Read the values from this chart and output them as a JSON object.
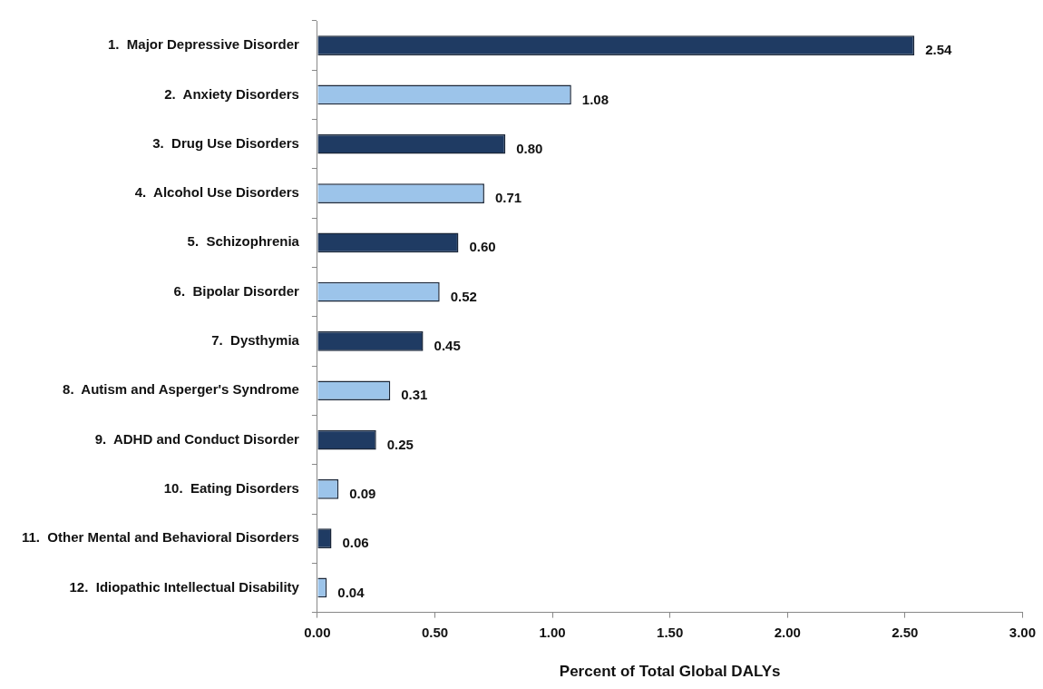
{
  "chart_data": {
    "type": "bar",
    "orientation": "horizontal",
    "xlabel": "Percent of Total Global DALYs",
    "categories": [
      "1.  Major Depressive Disorder",
      "2.  Anxiety Disorders",
      "3.  Drug Use Disorders",
      "4.  Alcohol Use Disorders",
      "5.  Schizophrenia",
      "6.  Bipolar Disorder",
      "7.  Dysthymia",
      "8.  Autism and Asperger's Syndrome",
      "9.  ADHD and Conduct Disorder",
      "10.  Eating Disorders",
      "11.  Other Mental and Behavioral Disorders",
      "12.  Idiopathic Intellectual Disability"
    ],
    "values": [
      2.54,
      1.08,
      0.8,
      0.71,
      0.6,
      0.52,
      0.45,
      0.31,
      0.25,
      0.09,
      0.06,
      0.04
    ],
    "value_labels": [
      "2.54",
      "1.08",
      "0.80",
      "0.71",
      "0.60",
      "0.52",
      "0.45",
      "0.31",
      "0.25",
      "0.09",
      "0.06",
      "0.04"
    ],
    "colors": [
      "#1f3b63",
      "#9cc4ea",
      "#1f3b63",
      "#9cc4ea",
      "#1f3b63",
      "#9cc4ea",
      "#1f3b63",
      "#9cc4ea",
      "#1f3b63",
      "#9cc4ea",
      "#1f3b63",
      "#9cc4ea"
    ],
    "xlim": [
      0,
      3
    ],
    "xticks": [
      {
        "value": 0,
        "label": "0.00"
      },
      {
        "value": 0.5,
        "label": "0.50"
      },
      {
        "value": 1,
        "label": "1.00"
      },
      {
        "value": 1.5,
        "label": "1.50"
      },
      {
        "value": 2,
        "label": "2.00"
      },
      {
        "value": 2.5,
        "label": "2.50"
      },
      {
        "value": 3,
        "label": "3.00"
      }
    ],
    "grid": false,
    "legend": false
  }
}
